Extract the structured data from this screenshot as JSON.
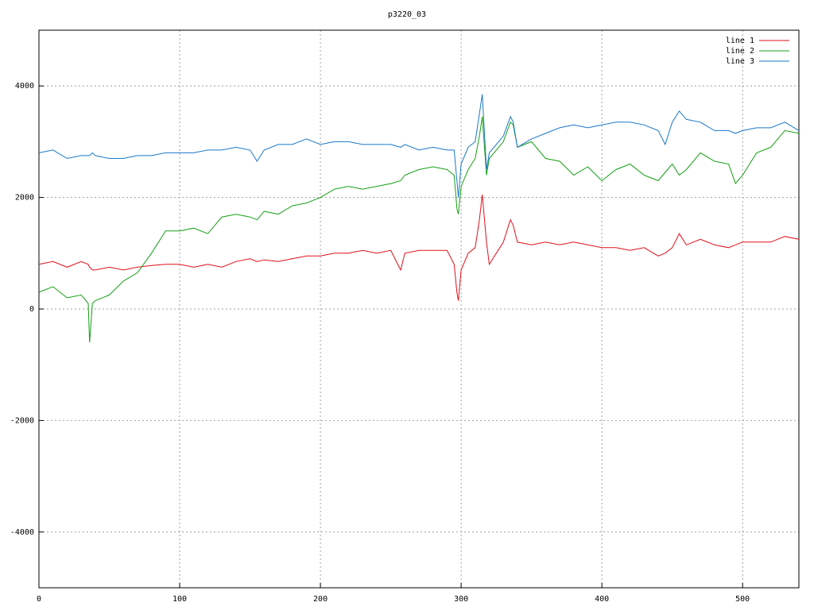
{
  "chart_data": {
    "type": "line",
    "title": "p3220_03",
    "x": [
      0,
      10,
      20,
      30,
      35,
      36,
      38,
      40,
      50,
      60,
      70,
      80,
      90,
      100,
      110,
      120,
      130,
      140,
      150,
      155,
      160,
      170,
      180,
      190,
      200,
      210,
      220,
      230,
      240,
      250,
      257,
      260,
      270,
      280,
      290,
      295,
      297,
      298,
      300,
      305,
      310,
      313,
      315,
      318,
      320,
      330,
      335,
      337,
      340,
      350,
      360,
      370,
      380,
      390,
      400,
      410,
      420,
      430,
      440,
      445,
      450,
      455,
      460,
      470,
      480,
      490,
      495,
      500,
      510,
      520,
      530,
      540
    ],
    "series": [
      {
        "name": "line 1",
        "color": "#e0101a",
        "values": [
          800,
          850,
          750,
          850,
          800,
          750,
          700,
          700,
          750,
          700,
          750,
          780,
          800,
          800,
          750,
          800,
          750,
          850,
          900,
          850,
          880,
          850,
          900,
          950,
          950,
          1000,
          1000,
          1050,
          1000,
          1050,
          700,
          1000,
          1050,
          1050,
          1050,
          800,
          300,
          150,
          700,
          1000,
          1100,
          1600,
          2050,
          1200,
          800,
          1200,
          1600,
          1500,
          1200,
          1150,
          1200,
          1150,
          1200,
          1150,
          1100,
          1100,
          1050,
          1100,
          950,
          1000,
          1100,
          1350,
          1150,
          1250,
          1150,
          1100,
          1150,
          1200,
          1200,
          1200,
          1300,
          1250
        ]
      },
      {
        "name": "line 2",
        "color": "#14a014",
        "values": [
          300,
          400,
          200,
          250,
          100,
          -600,
          100,
          150,
          250,
          500,
          650,
          1000,
          1400,
          1400,
          1450,
          1350,
          1650,
          1700,
          1650,
          1600,
          1750,
          1700,
          1850,
          1900,
          2000,
          2150,
          2200,
          2150,
          2200,
          2250,
          2300,
          2400,
          2500,
          2550,
          2500,
          2400,
          1800,
          1700,
          2200,
          2500,
          2700,
          3100,
          3450,
          2400,
          2700,
          3000,
          3350,
          3300,
          2900,
          3000,
          2700,
          2650,
          2400,
          2550,
          2300,
          2500,
          2600,
          2400,
          2300,
          2450,
          2600,
          2400,
          2500,
          2800,
          2650,
          2600,
          2250,
          2400,
          2800,
          2900,
          3200,
          3150
        ]
      },
      {
        "name": "line 3",
        "color": "#1a78c8",
        "values": [
          2800,
          2850,
          2700,
          2750,
          2750,
          2750,
          2800,
          2750,
          2700,
          2700,
          2750,
          2750,
          2800,
          2800,
          2800,
          2850,
          2850,
          2900,
          2850,
          2650,
          2850,
          2950,
          2950,
          3050,
          2950,
          3000,
          3000,
          2950,
          2950,
          2950,
          2900,
          2950,
          2850,
          2900,
          2850,
          2850,
          2300,
          2000,
          2600,
          2900,
          3000,
          3500,
          3850,
          2500,
          2800,
          3100,
          3450,
          3350,
          2900,
          3050,
          3150,
          3250,
          3300,
          3250,
          3300,
          3350,
          3350,
          3300,
          3200,
          2950,
          3350,
          3550,
          3400,
          3350,
          3200,
          3200,
          3150,
          3200,
          3250,
          3250,
          3350,
          3200
        ]
      }
    ],
    "xlim": [
      0,
      540
    ],
    "xticks": [
      0,
      100,
      200,
      300,
      400,
      500
    ],
    "ylim": [
      -5000,
      5000
    ],
    "yticks": [
      -4000,
      -2000,
      0,
      2000,
      4000
    ],
    "grid": true,
    "legend": "top-right"
  }
}
